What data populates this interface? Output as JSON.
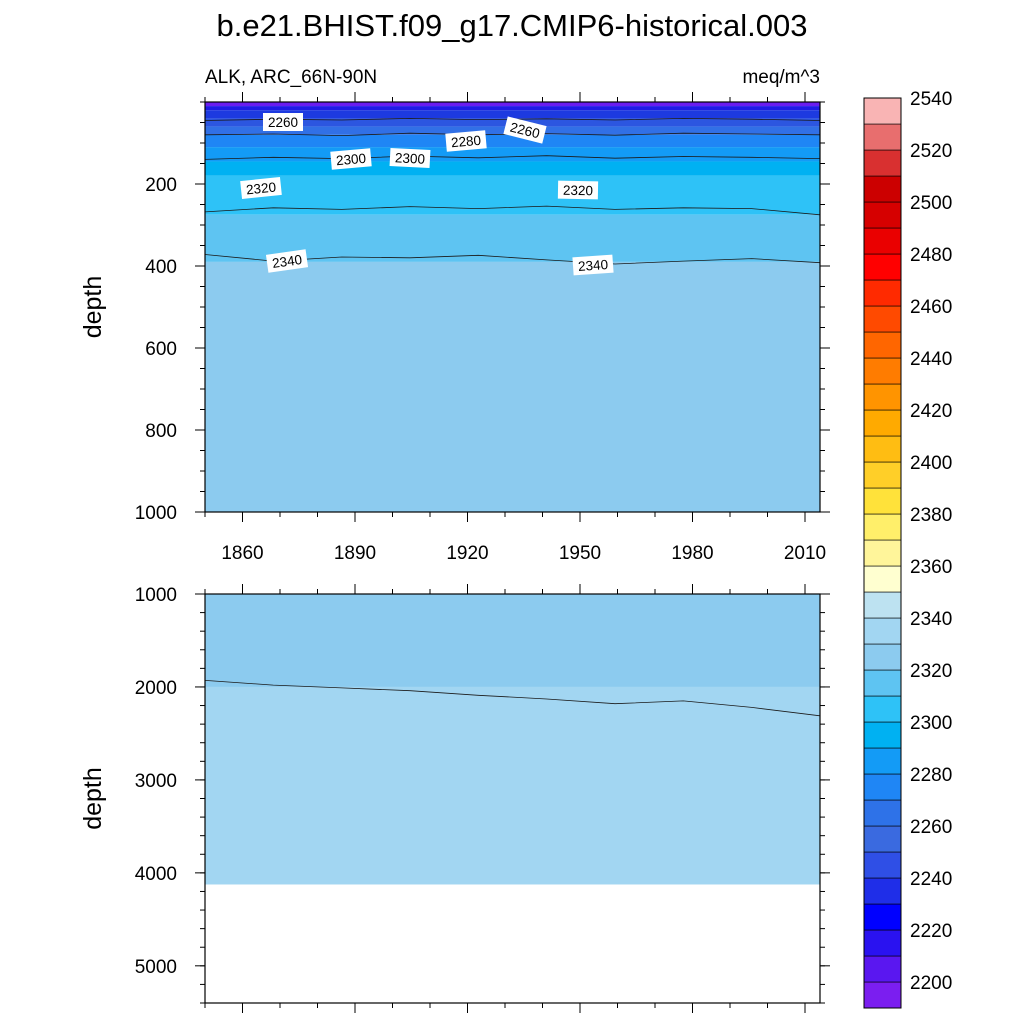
{
  "chart_data": {
    "type": "contour",
    "title": "b.e21.BHIST.f09_g17.CMIP6-historical.003",
    "left_subtitle": "ALK, ARC_66N-90N",
    "right_subtitle": "meq/m^3",
    "xlabel": "",
    "ylabel": "depth",
    "x_ticks": [
      "1860",
      "1890",
      "1920",
      "1950",
      "1980",
      "2010"
    ],
    "x_range": [
      1850,
      2014
    ],
    "panels": [
      {
        "name": "upper",
        "y_range": [
          0,
          1000
        ],
        "y_ticks": [
          "200",
          "400",
          "600",
          "800",
          "1000"
        ],
        "fill_bands": [
          {
            "top_depth": 0,
            "bottom_depth": 10,
            "color": "#6a1cf0"
          },
          {
            "top_depth": 10,
            "bottom_depth": 20,
            "color": "#1f1ae6"
          },
          {
            "top_depth": 20,
            "bottom_depth": 40,
            "color": "#1d3ae0"
          },
          {
            "top_depth": 40,
            "bottom_depth": 60,
            "color": "#2c56e0"
          },
          {
            "top_depth": 60,
            "bottom_depth": 80,
            "color": "#3170e6"
          },
          {
            "top_depth": 80,
            "bottom_depth": 110,
            "color": "#1f86f5"
          },
          {
            "top_depth": 110,
            "bottom_depth": 145,
            "color": "#139bf6"
          },
          {
            "top_depth": 145,
            "bottom_depth": 180,
            "color": "#00b1f2"
          },
          {
            "top_depth": 180,
            "bottom_depth": 275,
            "color": "#2ec2f7"
          },
          {
            "top_depth": 275,
            "bottom_depth": 390,
            "color": "#5ec4f2"
          },
          {
            "top_depth": 390,
            "bottom_depth": 1000,
            "color": "#8ccbef"
          }
        ],
        "contours": [
          {
            "level": 2260,
            "depths": [
              45,
              42,
              44,
              40,
              43,
              41,
              44,
              40,
              42,
              45
            ]
          },
          {
            "level": 2280,
            "depths": [
              80,
              78,
              82,
              76,
              80,
              77,
              81,
              76,
              78,
              80
            ]
          },
          {
            "level": 2300,
            "depths": [
              140,
              135,
              138,
              132,
              136,
              131,
              137,
              133,
              135,
              138
            ]
          },
          {
            "level": 2320,
            "depths": [
              268,
              258,
              262,
              255,
              260,
              254,
              262,
              258,
              260,
              275
            ]
          },
          {
            "level": 2340,
            "depths": [
              372,
              388,
              378,
              380,
              374,
              385,
              395,
              388,
              382,
              392
            ]
          }
        ],
        "labels": [
          "2260",
          "2260",
          "2280",
          "2300",
          "2300",
          "2320",
          "2320",
          "2340",
          "2340"
        ]
      },
      {
        "name": "lower",
        "y_range": [
          1000,
          5400
        ],
        "y_ticks": [
          "1000",
          "2000",
          "3000",
          "4000",
          "5000"
        ],
        "fill_bands": [
          {
            "top_depth": 1000,
            "bottom_depth": 2000,
            "color": "#8ccbef"
          },
          {
            "top_depth": 2000,
            "bottom_depth": 4125,
            "color": "#a2d6f2"
          }
        ],
        "contours": [
          {
            "level": 2360,
            "depths": [
              1930,
              1980,
              2010,
              2040,
              2090,
              2130,
              2180,
              2150,
              2220,
              2310
            ]
          }
        ],
        "ocean_floor_depth": 4125
      }
    ],
    "colorbar": {
      "levels": [
        "2200",
        "2220",
        "2240",
        "2260",
        "2280",
        "2300",
        "2320",
        "2340",
        "2360",
        "2380",
        "2400",
        "2420",
        "2440",
        "2460",
        "2480",
        "2500",
        "2520",
        "2540"
      ],
      "colors": [
        "#7b1ef0",
        "#5a17f0",
        "#2a12f0",
        "#0000ff",
        "#1f2ee8",
        "#2f4fe6",
        "#3a6ae0",
        "#2e72e8",
        "#1f86f5",
        "#139bf6",
        "#00b1f2",
        "#2ec2f7",
        "#5ec4f2",
        "#8ccbef",
        "#a2d6f2",
        "#bde2f1",
        "#ffffd0",
        "#fff59a",
        "#ffef6a",
        "#ffe23a",
        "#ffcf28",
        "#ffbd12",
        "#ffaa00",
        "#ff9400",
        "#ff7c00",
        "#ff6600",
        "#ff4a00",
        "#ff2a00",
        "#ff0000",
        "#ea0000",
        "#d60000",
        "#cc0000",
        "#d93030",
        "#e86e6e",
        "#f9b4b4"
      ]
    }
  }
}
